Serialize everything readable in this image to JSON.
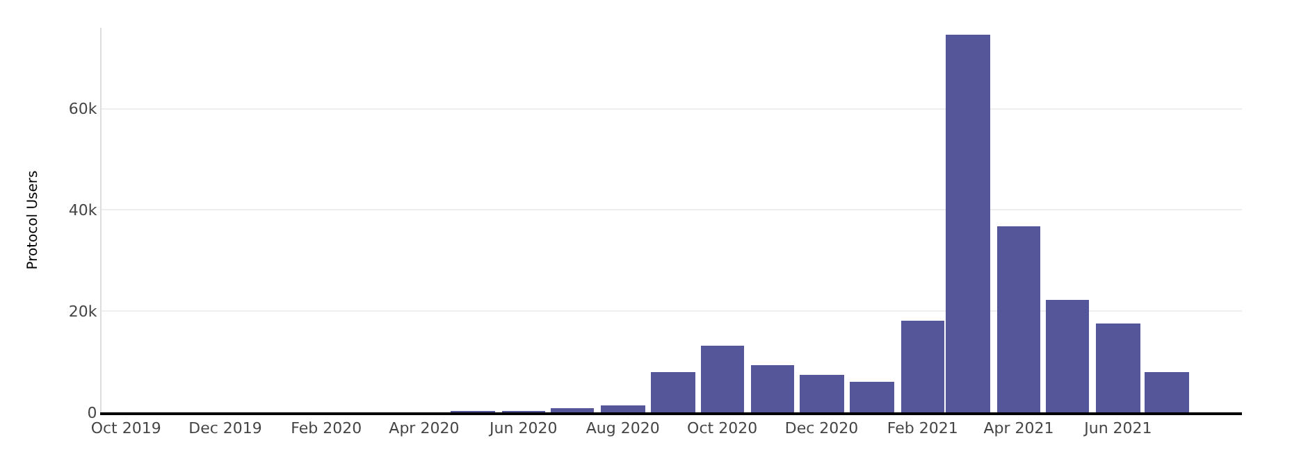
{
  "chart_data": {
    "type": "bar",
    "ylabel": "Protocol Users",
    "x": [
      "2019-10",
      "2019-11",
      "2019-12",
      "2020-01",
      "2020-02",
      "2020-03",
      "2020-04",
      "2020-05",
      "2020-06",
      "2020-07",
      "2020-08",
      "2020-09",
      "2020-10",
      "2020-11",
      "2020-12",
      "2021-01",
      "2021-02",
      "2021-03",
      "2021-04",
      "2021-05",
      "2021-06",
      "2021-07"
    ],
    "values": [
      0,
      0,
      0,
      0,
      0,
      0,
      0,
      100,
      200,
      700,
      1300,
      7900,
      13300,
      9300,
      7300,
      6000,
      18200,
      74600,
      36900,
      22200,
      17600,
      7900
    ],
    "color": "#555599",
    "xlim": [
      "2019-09-16",
      "2021-08-16"
    ],
    "xticks": [
      {
        "value": "2019-10",
        "label": "Oct 2019"
      },
      {
        "value": "2019-12",
        "label": "Dec 2019"
      },
      {
        "value": "2020-02",
        "label": "Feb 2020"
      },
      {
        "value": "2020-04",
        "label": "Apr 2020"
      },
      {
        "value": "2020-06",
        "label": "Jun 2020"
      },
      {
        "value": "2020-08",
        "label": "Aug 2020"
      },
      {
        "value": "2020-10",
        "label": "Oct 2020"
      },
      {
        "value": "2020-12",
        "label": "Dec 2020"
      },
      {
        "value": "2021-02",
        "label": "Feb 2021"
      },
      {
        "value": "2021-04",
        "label": "Apr 2021"
      },
      {
        "value": "2021-06",
        "label": "Jun 2021"
      }
    ],
    "yticks": [
      0,
      {
        "value": 20000,
        "label": "20k"
      },
      {
        "value": 40000,
        "label": "40k"
      },
      {
        "value": 60000,
        "label": "60k"
      }
    ],
    "ylim": [
      0,
      76000
    ],
    "grid": "y"
  }
}
